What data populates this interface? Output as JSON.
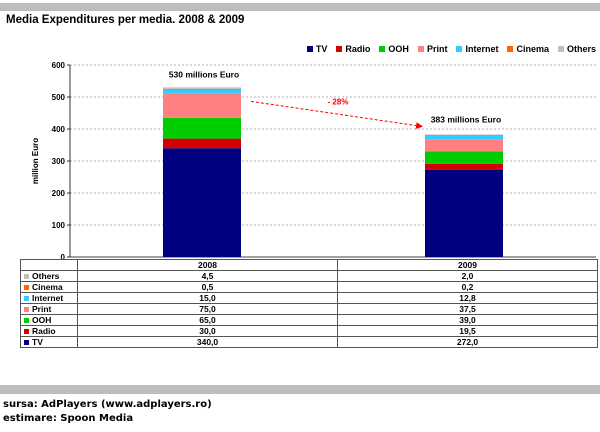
{
  "title": "Media Expenditures per media. 2008 & 2009",
  "footer": {
    "source": "sursa: AdPlayers (www.adplayers.ro)",
    "estimate": "estimare: Spoon Media"
  },
  "chart_data": {
    "type": "bar",
    "stacked": true,
    "title": "Media Expenditures per media. 2008 & 2009",
    "ylabel": "million Euro",
    "xlabel": "",
    "ylim": [
      0,
      600
    ],
    "yticks": [
      0,
      100,
      200,
      300,
      400,
      500,
      600
    ],
    "grid": true,
    "legend_position": "top-right",
    "categories": [
      "2008",
      "2009"
    ],
    "series": [
      {
        "name": "TV",
        "color": "#000080",
        "values": [
          340.0,
          272.0
        ],
        "display": [
          "340,0",
          "272,0"
        ]
      },
      {
        "name": "Radio",
        "color": "#d40000",
        "values": [
          30.0,
          19.5
        ],
        "display": [
          "30,0",
          "19,5"
        ]
      },
      {
        "name": "OOH",
        "color": "#00cc00",
        "values": [
          65.0,
          39.0
        ],
        "display": [
          "65,0",
          "39,0"
        ]
      },
      {
        "name": "Print",
        "color": "#ff8080",
        "values": [
          75.0,
          37.5
        ],
        "display": [
          "75,0",
          "37,5"
        ]
      },
      {
        "name": "Internet",
        "color": "#33ccff",
        "values": [
          15.0,
          12.8
        ],
        "display": [
          "15,0",
          "12,8"
        ]
      },
      {
        "name": "Cinema",
        "color": "#ff6600",
        "values": [
          0.5,
          0.2
        ],
        "display": [
          "0,5",
          "0,2"
        ]
      },
      {
        "name": "Others",
        "color": "#bfbfbf",
        "values": [
          4.5,
          2.0
        ],
        "display": [
          "4,5",
          "2,0"
        ]
      }
    ],
    "total_labels": [
      "530  millions Euro",
      "383 millions Euro"
    ],
    "annotation": {
      "text": "- 28%",
      "color": "#ff0000"
    },
    "table_row_order": [
      "Others",
      "Cinema",
      "Internet",
      "Print",
      "OOH",
      "Radio",
      "TV"
    ]
  }
}
